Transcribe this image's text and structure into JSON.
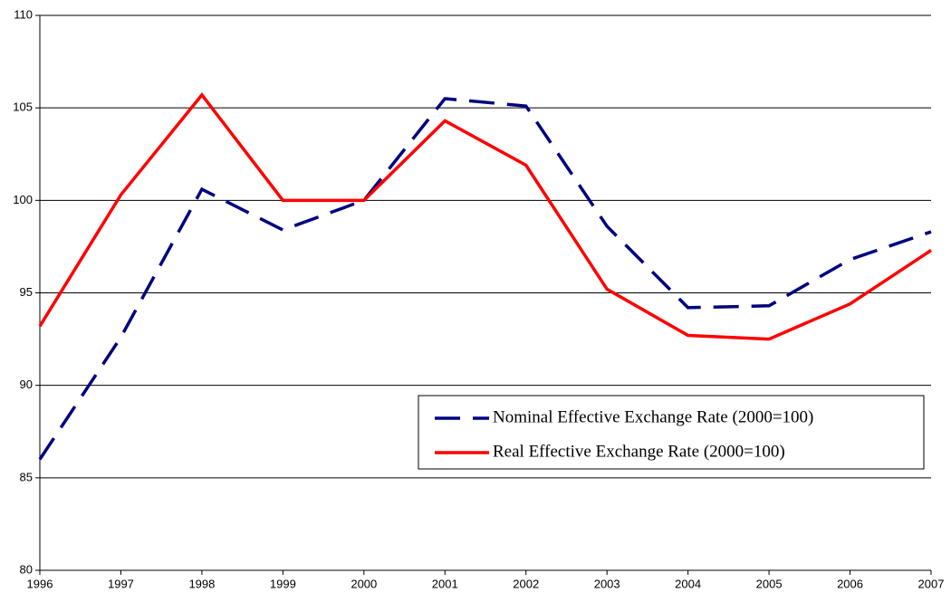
{
  "chart_data": {
    "type": "line",
    "x": [
      1996,
      1997,
      1998,
      1999,
      2000,
      2001,
      2002,
      2003,
      2004,
      2005,
      2006,
      2007
    ],
    "series": [
      {
        "name": "Nominal Effective Exchange Rate (2000=100)",
        "color": "#000080",
        "dashed": true,
        "values": [
          86.0,
          92.6,
          100.6,
          98.4,
          100.0,
          105.5,
          105.1,
          98.6,
          94.2,
          94.3,
          96.8,
          98.3
        ]
      },
      {
        "name": "Real Effective Exchange Rate (2000=100)",
        "color": "#ff0000",
        "dashed": false,
        "values": [
          93.2,
          100.3,
          105.7,
          100.0,
          100.0,
          104.3,
          101.9,
          95.2,
          92.7,
          92.5,
          94.4,
          97.3
        ]
      }
    ],
    "xlim": [
      1996,
      2007
    ],
    "xticks": [
      1996,
      1997,
      1998,
      1999,
      2000,
      2001,
      2002,
      2003,
      2004,
      2005,
      2006,
      2007
    ],
    "ylim": [
      80,
      110
    ],
    "yticks": [
      80,
      85,
      90,
      95,
      100,
      105,
      110
    ],
    "grid": true
  }
}
